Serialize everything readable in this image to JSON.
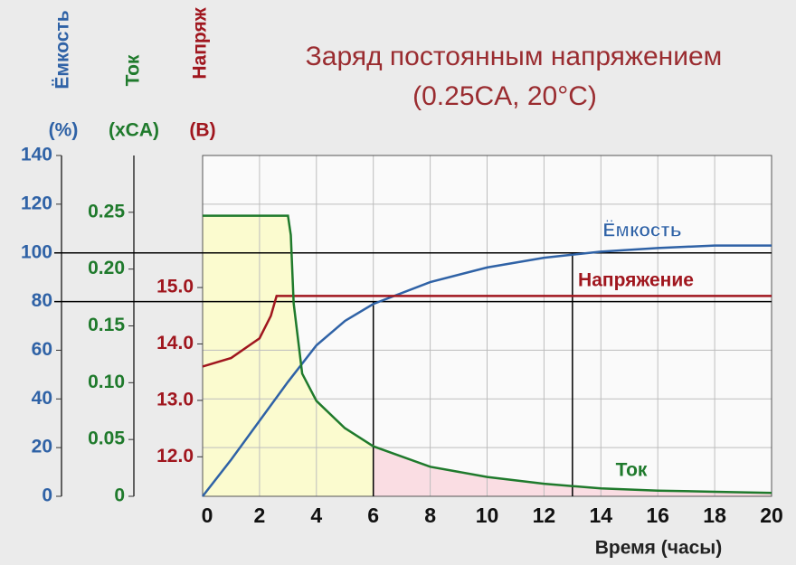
{
  "chart_data": {
    "type": "line",
    "title": "Заряд постоянным напряжением",
    "subtitle": "(0.25CA, 20°C)",
    "x_label": "Время (часы)",
    "y_label": "Ёмкость",
    "y_unit": "(%)",
    "y2_label": "Ток",
    "y2_unit": "(xCA)",
    "y3_label": "Напряж",
    "y3_unit": "(В)",
    "xlim": [
      0,
      20
    ],
    "xticks": [
      0,
      2,
      4,
      6,
      8,
      10,
      12,
      14,
      16,
      18,
      20
    ],
    "ylim": [
      0,
      140
    ],
    "yticks": [
      0,
      20,
      40,
      60,
      80,
      100,
      120,
      140
    ],
    "y2lim": [
      0,
      0.3
    ],
    "y2ticks": [
      0,
      0.05,
      {
        "value": 0.1,
        "label": "0.10"
      },
      0.15,
      {
        "value": 0.2,
        "label": "0.20"
      },
      0.25
    ],
    "y3lim": [
      11.3,
      17.34
    ],
    "y3ticks": [
      {
        "value": 12,
        "label": "12.0"
      },
      {
        "value": 13,
        "label": "13.0"
      },
      {
        "value": 14,
        "label": "14.0"
      },
      {
        "value": 15,
        "label": "15.0"
      }
    ],
    "grid": true,
    "area_colors": [
      "#fbfbcf",
      "#fadde3"
    ],
    "guides": [
      {
        "x": 6,
        "y": 80
      },
      {
        "x": 13,
        "y": 100
      }
    ],
    "series": [
      {
        "name": "Ёмкость",
        "color": "#2f62a6",
        "axis": "y",
        "x": [
          0,
          1,
          2,
          3,
          4,
          5,
          6,
          8,
          10,
          12,
          14,
          16,
          18,
          20
        ],
        "values": [
          0,
          15,
          31,
          47,
          62,
          72,
          79,
          88,
          94,
          98,
          100.5,
          102,
          103,
          103
        ]
      },
      {
        "name": "Напряжение",
        "color": "#a0161e",
        "axis": "y3",
        "x": [
          0,
          1,
          2,
          2.4,
          2.6,
          20
        ],
        "values": [
          13.6,
          13.75,
          14.1,
          14.5,
          14.85,
          14.85
        ]
      },
      {
        "name": "Ток",
        "color": "#1f7a2c",
        "axis": "y2",
        "x": [
          0,
          3,
          3.1,
          3.2,
          3.5,
          4,
          5,
          6,
          8,
          10,
          12,
          14,
          16,
          18,
          20
        ],
        "values": [
          0.247,
          0.247,
          0.23,
          0.17,
          0.108,
          0.084,
          0.06,
          0.044,
          0.026,
          0.017,
          0.011,
          0.007,
          0.005,
          0.004,
          0.003
        ]
      }
    ]
  }
}
